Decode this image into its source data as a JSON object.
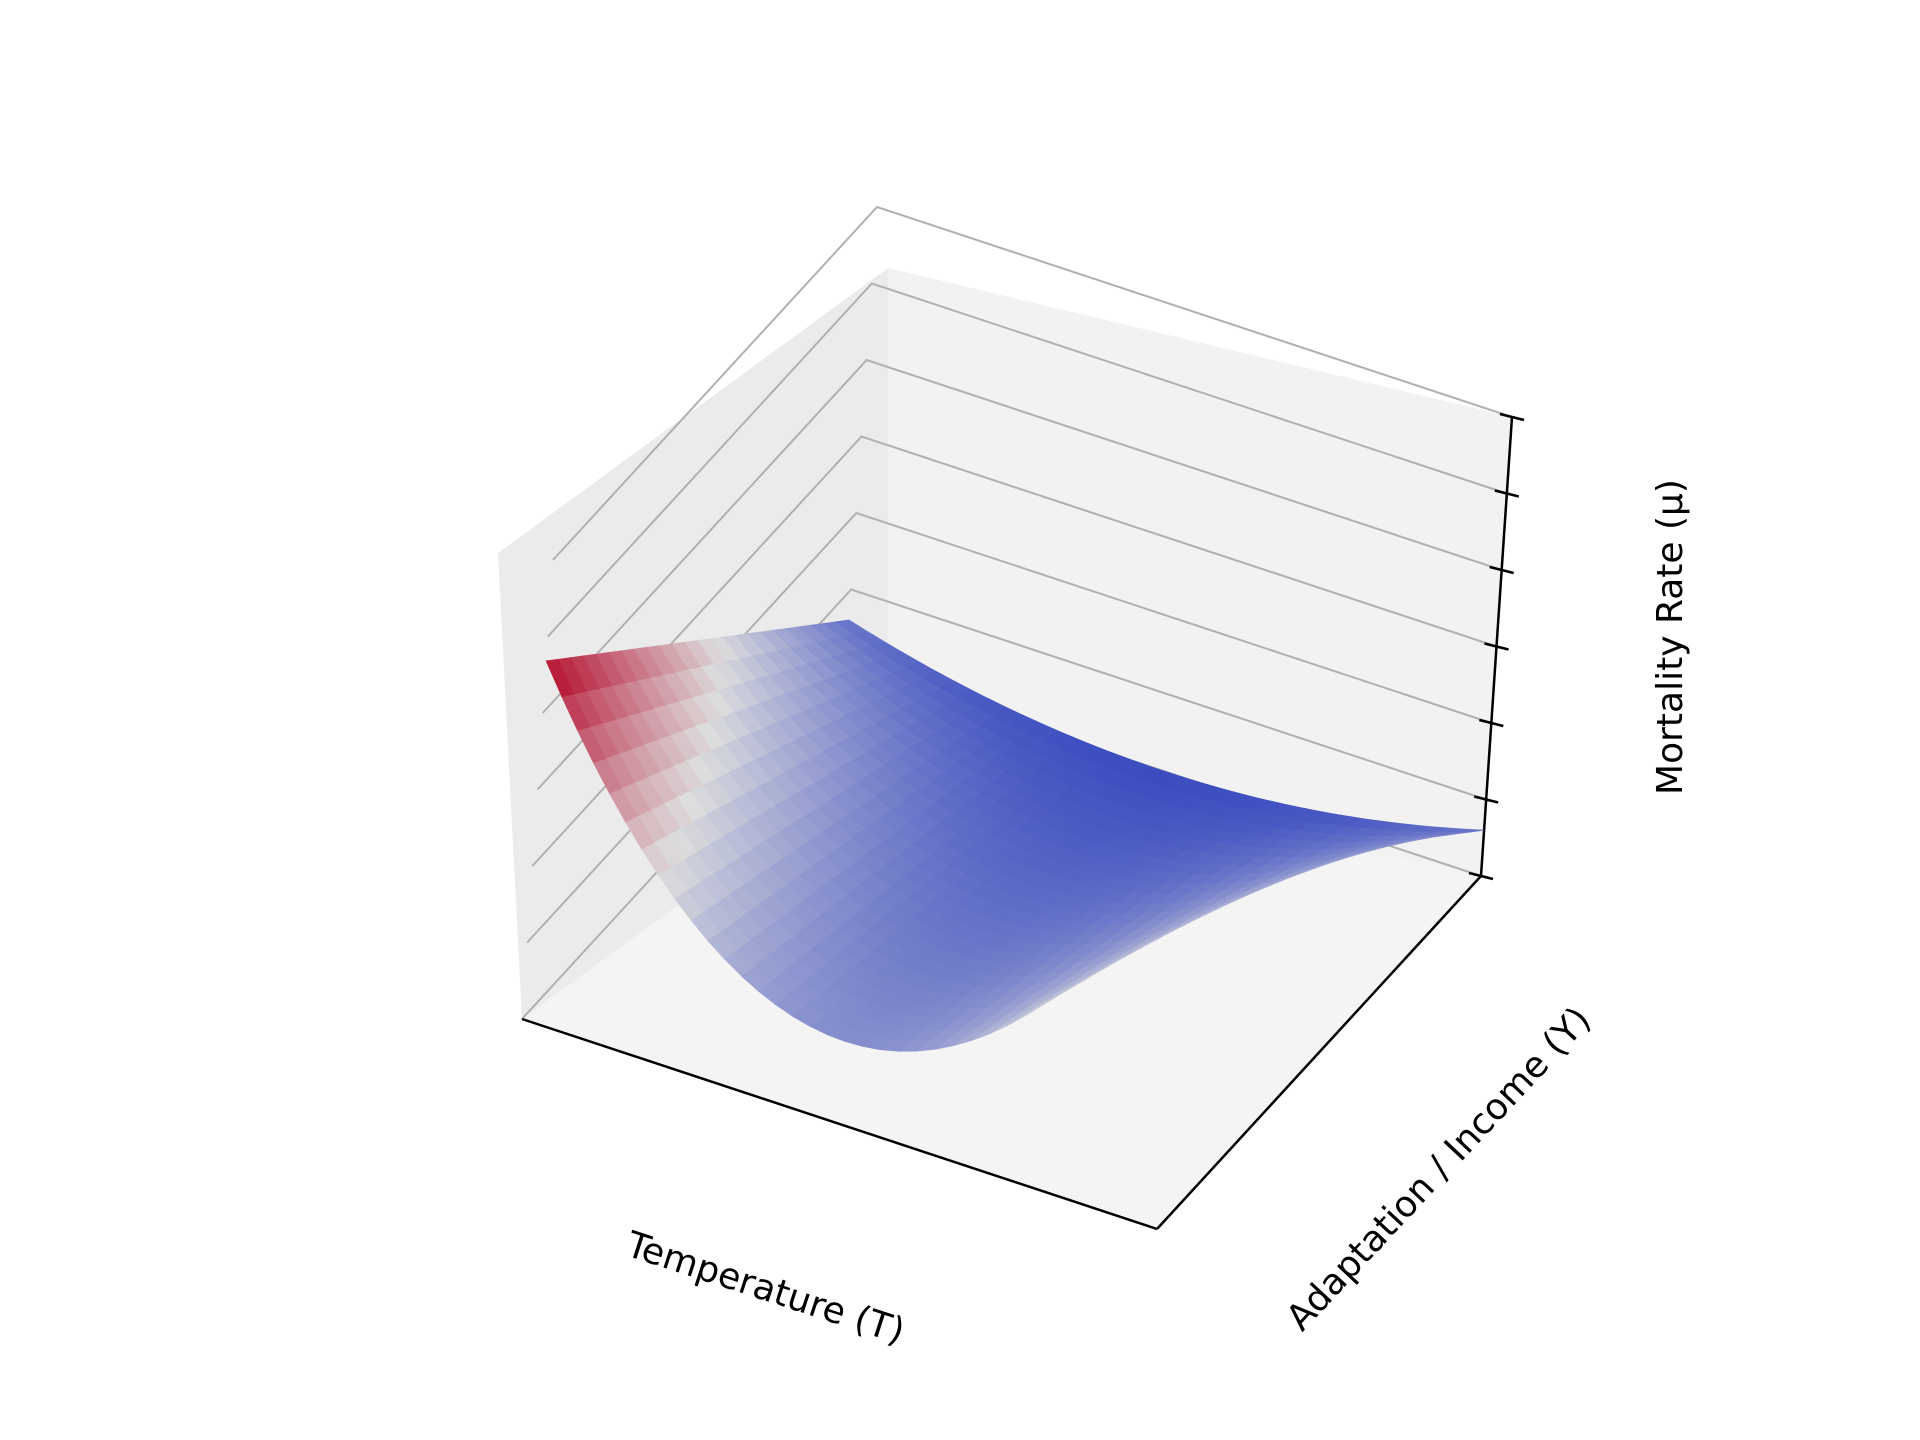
{
  "chart_data": {
    "type": "surface",
    "xlabel": "Temperature (T)",
    "ylabel": "Adaptation / Income (Y)",
    "zlabel": "Mortality Rate (μ)",
    "colormap": "coolwarm",
    "colors": {
      "low": "#3b4cc0",
      "mid": "#dddddd",
      "high": "#b40426",
      "pane_back": "#f2f2f2",
      "pane_side": "#ebebeb",
      "pane_floor": "#f4f4f4",
      "grid": "#b0b0b0",
      "axis": "#000000"
    },
    "x_range": [
      0,
      1
    ],
    "y_range": [
      0,
      1
    ],
    "z_range": [
      0,
      1
    ],
    "ticks_labeled": false,
    "grid": true,
    "surface": {
      "description_of_shape": "U-shaped parabola in T, vertex at T = 0.5; curvature and height decrease as Y increases",
      "T_optimum": 0.5,
      "mortality_at_Y0": {
        "extreme_T": 0.78,
        "optimal_T": 0.18
      },
      "mortality_at_Y1": {
        "extreme_T": 0.1,
        "optimal_T": 0.0
      }
    }
  }
}
